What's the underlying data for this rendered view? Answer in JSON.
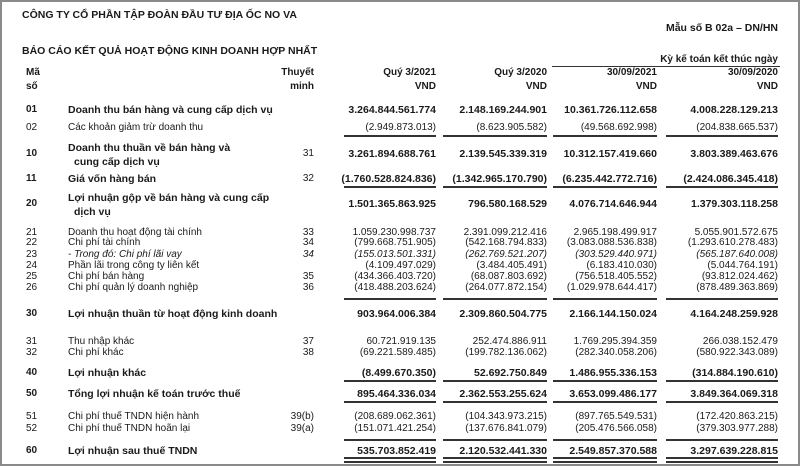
{
  "company": "CÔNG TY CỔ PHẦN TẬP ĐOÀN ĐẦU TƯ ĐỊA ỐC NO VA",
  "form_code": "Mẫu số B 02a – DN/HN",
  "report_title": "BÁO CÁO KẾT QUẢ HOẠT ĐỘNG KINH DOANH HỢP NHẤT",
  "headers": {
    "code_line1": "Mã",
    "code_line2": "số",
    "note_line1": "Thuyết",
    "note_line2": "minh",
    "period_group": "Kỳ kế toán kết thúc ngày",
    "columns": [
      {
        "title": "Quý 3/2021",
        "unit": "VND"
      },
      {
        "title": "Quý 3/2020",
        "unit": "VND"
      },
      {
        "title": "30/09/2021",
        "unit": "VND"
      },
      {
        "title": "30/09/2020",
        "unit": "VND"
      }
    ]
  },
  "rows": [
    {
      "code": "01",
      "label": "Doanh thu bán hàng và cung cấp dịch vụ",
      "label2": "",
      "note": "",
      "bold": true,
      "italic": false,
      "values": [
        "3.264.844.561.774",
        "2.148.169.244.901",
        "10.361.726.112.658",
        "4.008.228.129.213"
      ]
    },
    {
      "code": "02",
      "label": "Các khoản giảm trừ doanh thu",
      "label2": "",
      "note": "",
      "bold": false,
      "italic": false,
      "values": [
        "(2.949.873.013)",
        "(8.623.905.582)",
        "(49.568.692.998)",
        "(204.838.665.537)"
      ]
    },
    {
      "code": "10",
      "label": "Doanh thu thuần về bán hàng và",
      "label2": "cung cấp dịch vụ",
      "note": "31",
      "bold": true,
      "italic": false,
      "values": [
        "3.261.894.688.761",
        "2.139.545.339.319",
        "10.312.157.419.660",
        "3.803.389.463.676"
      ]
    },
    {
      "code": "11",
      "label": "Giá vốn hàng bán",
      "label2": "",
      "note": "32",
      "bold": true,
      "italic": false,
      "values": [
        "(1.760.528.824.836)",
        "(1.342.965.170.790)",
        "(6.235.442.772.716)",
        "(2.424.086.345.418)"
      ]
    },
    {
      "code": "20",
      "label": "Lợi nhuận gộp về bán hàng và cung cấp",
      "label2": "dịch vụ",
      "note": "",
      "bold": true,
      "italic": false,
      "values": [
        "1.501.365.863.925",
        "796.580.168.529",
        "4.076.714.646.944",
        "1.379.303.118.258"
      ]
    },
    {
      "code": "21",
      "label": "Doanh thu hoạt động tài chính",
      "label2": "",
      "note": "33",
      "bold": false,
      "italic": false,
      "values": [
        "1.059.230.998.737",
        "2.391.099.212.416",
        "2.965.198.499.917",
        "5.055.901.572.675"
      ]
    },
    {
      "code": "22",
      "label": "Chi phí tài chính",
      "label2": "",
      "note": "34",
      "bold": false,
      "italic": false,
      "values": [
        "(799.668.751.905)",
        "(542.168.794.833)",
        "(3.083.088.536.838)",
        "(1.293.610.278.483)"
      ]
    },
    {
      "code": "23",
      "label": "- Trong đó: Chi phí lãi vay",
      "label2": "",
      "note": "34",
      "bold": false,
      "italic": true,
      "values": [
        "(155.013.501.331)",
        "(262.769.521.207)",
        "(303.529.440.971)",
        "(565.187.640.008)"
      ]
    },
    {
      "code": "24",
      "label": "Phần lãi trong công ty liên kết",
      "label2": "",
      "note": "",
      "bold": false,
      "italic": false,
      "values": [
        "(4.109.497.029)",
        "(3.484.405.491)",
        "(6.183.410.030)",
        "(5.044.764.191)"
      ]
    },
    {
      "code": "25",
      "label": "Chi phí bán hàng",
      "label2": "",
      "note": "35",
      "bold": false,
      "italic": false,
      "values": [
        "(434.366.403.720)",
        "(68.087.803.692)",
        "(756.518.405.552)",
        "(93.812.024.462)"
      ]
    },
    {
      "code": "26",
      "label": "Chi phí quản lý doanh nghiệp",
      "label2": "",
      "note": "36",
      "bold": false,
      "italic": false,
      "values": [
        "(418.488.203.624)",
        "(264.077.872.154)",
        "(1.029.978.644.417)",
        "(878.489.363.869)"
      ]
    },
    {
      "code": "30",
      "label": "Lợi nhuận thuần từ hoạt động kinh doanh",
      "label2": "",
      "note": "",
      "bold": true,
      "italic": false,
      "values": [
        "903.964.006.384",
        "2.309.860.504.775",
        "2.166.144.150.024",
        "4.164.248.259.928"
      ]
    },
    {
      "code": "31",
      "label": "Thu nhập khác",
      "label2": "",
      "note": "37",
      "bold": false,
      "italic": false,
      "values": [
        "60.721.919.135",
        "252.474.886.911",
        "1.769.295.394.359",
        "266.038.152.479"
      ]
    },
    {
      "code": "32",
      "label": "Chi phí khác",
      "label2": "",
      "note": "38",
      "bold": false,
      "italic": false,
      "values": [
        "(69.221.589.485)",
        "(199.782.136.062)",
        "(282.340.058.206)",
        "(580.922.343.089)"
      ]
    },
    {
      "code": "40",
      "label": "Lợi nhuận khác",
      "label2": "",
      "note": "",
      "bold": true,
      "italic": false,
      "values": [
        "(8.499.670.350)",
        "52.692.750.849",
        "1.486.955.336.153",
        "(314.884.190.610)"
      ]
    },
    {
      "code": "50",
      "label": "Tổng lợi nhuận kế toán trước thuế",
      "label2": "",
      "note": "",
      "bold": true,
      "italic": false,
      "values": [
        "895.464.336.034",
        "2.362.553.255.624",
        "3.653.099.486.177",
        "3.849.364.069.318"
      ]
    },
    {
      "code": "51",
      "label": "Chi phí thuế TNDN hiện hành",
      "label2": "",
      "note": "39(b)",
      "bold": false,
      "italic": false,
      "values": [
        "(208.689.062.361)",
        "(104.343.973.215)",
        "(897.765.549.531)",
        "(172.420.863.215)"
      ]
    },
    {
      "code": "52",
      "label": "Chi phí thuế TNDN hoãn lại",
      "label2": "",
      "note": "39(a)",
      "bold": false,
      "italic": false,
      "values": [
        "(151.071.421.254)",
        "(137.676.841.079)",
        "(205.476.566.058)",
        "(379.303.977.288)"
      ]
    },
    {
      "code": "60",
      "label": "Lợi nhuận sau thuế TNDN",
      "label2": "",
      "note": "",
      "bold": true,
      "italic": false,
      "values": [
        "535.703.852.419",
        "2.120.532.441.330",
        "2.549.857.370.588",
        "3.297.639.228.815"
      ]
    }
  ]
}
